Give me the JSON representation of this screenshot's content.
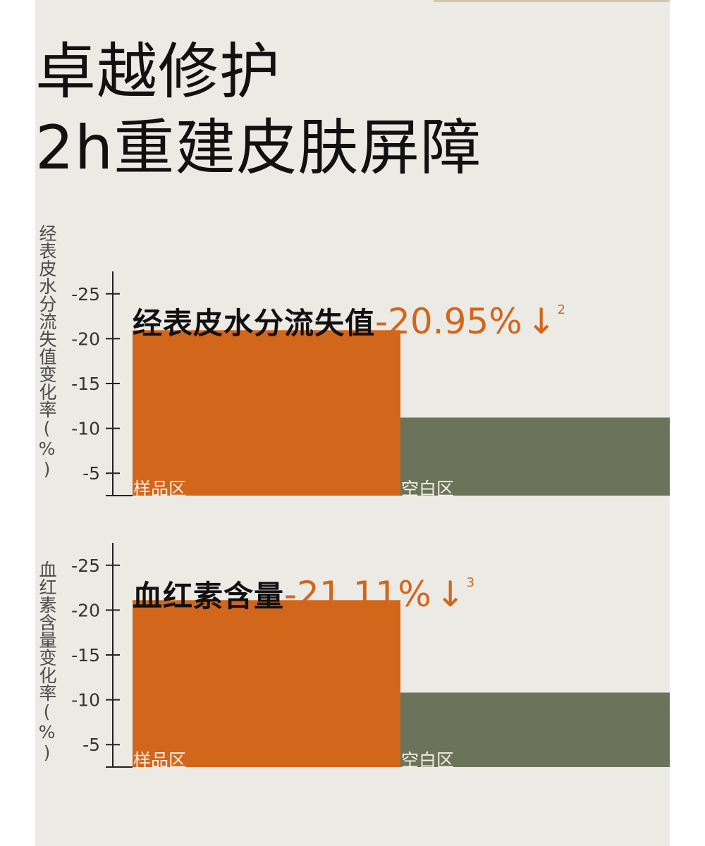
{
  "headline": {
    "line1": "卓越修护",
    "line2": "2h重建皮肤屏障"
  },
  "colors": {
    "background": "#eceae5",
    "sample_bar": "#d2661b",
    "control_bar": "#6b735b",
    "accent_text": "#d2661b",
    "text": "#111111"
  },
  "chart_data": [
    {
      "type": "bar",
      "ylabel": "经表皮水分流失值变化率(%)",
      "yticks": [
        -5,
        -10,
        -15,
        -20,
        -25
      ],
      "ylim": [
        -2.5,
        -27.5
      ],
      "categories": [
        "样品区",
        "空白区"
      ],
      "values": [
        -20.95,
        -11.2
      ],
      "bar_colors": [
        "#d2661b",
        "#6b735b"
      ],
      "callout": {
        "metric": "经表皮水分流失值",
        "value": "-20.95%",
        "arrow": "↓",
        "ref": "2"
      }
    },
    {
      "type": "bar",
      "ylabel": "血红素含量变化率(%)",
      "yticks": [
        -5,
        -10,
        -15,
        -20,
        -25
      ],
      "ylim": [
        -2.5,
        -27.5
      ],
      "categories": [
        "样品区",
        "空白区"
      ],
      "values": [
        -21.11,
        -10.8
      ],
      "bar_colors": [
        "#d2661b",
        "#6b735b"
      ],
      "callout": {
        "metric": "血红素含量",
        "value": "-21.11%",
        "arrow": "↓",
        "ref": "3"
      }
    }
  ]
}
